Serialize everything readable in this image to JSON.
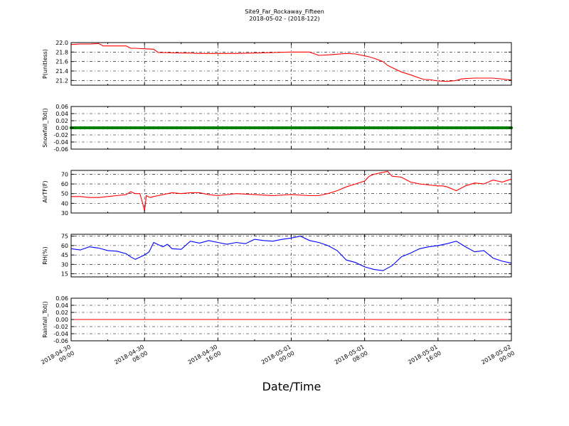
{
  "figure": {
    "title_line1": "Site9_Far_Rockaway_Fifteen",
    "title_line2": "2018-05-02 - (2018-122)",
    "xlabel": "Date/Time",
    "x_ticks": [
      {
        "l1": "2018-04-30",
        "l2": "00:00"
      },
      {
        "l1": "2018-04-30",
        "l2": "08:00"
      },
      {
        "l1": "2018-04-30",
        "l2": "16:00"
      },
      {
        "l1": "2018-05-01",
        "l2": "00:00"
      },
      {
        "l1": "2018-05-01",
        "l2": "08:00"
      },
      {
        "l1": "2018-05-01",
        "l2": "16:00"
      },
      {
        "l1": "2018-05-02",
        "l2": "00:00"
      }
    ]
  },
  "chart_data": [
    {
      "type": "line",
      "ylabel": "P(unitless)",
      "ylim": [
        21.1,
        22.0
      ],
      "yticks": [
        21.2,
        21.4,
        21.6,
        21.8,
        22.0
      ],
      "tick_decimals": 1,
      "color": "#ff0000",
      "grid": true,
      "x": [
        0,
        1,
        2,
        3,
        3.5,
        4,
        5,
        6,
        6.5,
        7,
        8,
        9,
        9.5,
        10,
        12,
        13,
        14,
        15,
        16,
        18,
        20,
        22,
        24,
        26,
        27,
        28,
        30,
        31,
        32,
        32.5,
        33,
        34,
        34.5,
        35,
        36,
        37,
        38,
        38.5,
        39,
        40,
        41,
        42,
        42.5,
        43,
        44,
        46,
        48
      ],
      "y": [
        21.96,
        21.97,
        21.97,
        21.98,
        21.93,
        21.93,
        21.93,
        21.93,
        21.88,
        21.88,
        21.87,
        21.86,
        21.79,
        21.79,
        21.78,
        21.78,
        21.77,
        21.77,
        21.77,
        21.77,
        21.78,
        21.79,
        21.8,
        21.8,
        21.73,
        21.74,
        21.77,
        21.76,
        21.72,
        21.7,
        21.67,
        21.6,
        21.52,
        21.47,
        21.38,
        21.32,
        21.25,
        21.22,
        21.22,
        21.19,
        21.18,
        21.2,
        21.23,
        21.24,
        21.25,
        21.25,
        21.21
      ]
    },
    {
      "type": "line",
      "ylabel": "Snowfall_Tot()",
      "ylim": [
        -0.06,
        0.06
      ],
      "yticks": [
        -0.06,
        -0.04,
        -0.02,
        0.0,
        0.02,
        0.04,
        0.06
      ],
      "tick_decimals": 2,
      "color": "#008000",
      "grid": true,
      "x": [
        0,
        48
      ],
      "y": [
        0.0,
        0.0
      ]
    },
    {
      "type": "line",
      "ylabel": "AirTF(F)",
      "ylim": [
        30,
        74
      ],
      "yticks": [
        30,
        40,
        50,
        60,
        70
      ],
      "tick_decimals": 0,
      "color": "#ff0000",
      "grid": true,
      "x": [
        0,
        1,
        2,
        3,
        4,
        5,
        6,
        6.5,
        7,
        7.5,
        7.8,
        8.0,
        8.2,
        8.6,
        9,
        9.5,
        10,
        11,
        12,
        13,
        14,
        15,
        16,
        18,
        20,
        22,
        24,
        26,
        27,
        28,
        29,
        30,
        31,
        32,
        32.5,
        33,
        34,
        34.5,
        35,
        36,
        37,
        38,
        39,
        40,
        40.5,
        41,
        42,
        43,
        44,
        45,
        46,
        47,
        48
      ],
      "y": [
        47,
        47,
        46,
        46,
        47,
        48,
        49,
        52,
        50,
        50,
        40,
        32,
        48,
        46,
        47,
        48,
        49,
        51,
        50,
        51,
        51,
        49,
        48,
        50,
        49,
        48,
        49,
        48,
        48,
        50,
        53,
        57,
        60,
        63,
        68,
        70,
        72,
        73,
        68,
        67,
        62,
        60,
        59,
        58,
        58,
        57,
        53,
        58,
        61,
        60,
        64,
        62,
        65
      ]
    },
    {
      "type": "line",
      "ylabel": "RH(%)",
      "ylim": [
        10,
        78
      ],
      "yticks": [
        15,
        30,
        45,
        60,
        75
      ],
      "tick_decimals": 0,
      "color": "#0000ff",
      "grid": true,
      "x": [
        0,
        1,
        2,
        3,
        4,
        5,
        6,
        6.5,
        7,
        8,
        8.5,
        9,
        10,
        10.5,
        11,
        12,
        13,
        14,
        15,
        16,
        17,
        18,
        19,
        20,
        21,
        22,
        23,
        24,
        25,
        26,
        27,
        28,
        29,
        30,
        31,
        32,
        33,
        34,
        35,
        36,
        37,
        38,
        39,
        40,
        41,
        42,
        43,
        44,
        45,
        46,
        47,
        48
      ],
      "y": [
        55,
        53,
        58,
        56,
        52,
        51,
        47,
        42,
        38,
        45,
        50,
        65,
        58,
        62,
        55,
        54,
        67,
        64,
        68,
        65,
        62,
        65,
        63,
        70,
        68,
        67,
        70,
        72,
        75,
        68,
        65,
        60,
        52,
        37,
        33,
        26,
        22,
        20,
        28,
        42,
        48,
        55,
        58,
        60,
        63,
        67,
        58,
        50,
        52,
        40,
        35,
        32
      ]
    },
    {
      "type": "line",
      "ylabel": "Rainfall_Tot()",
      "ylim": [
        -0.06,
        0.06
      ],
      "yticks": [
        -0.06,
        -0.04,
        -0.02,
        0.0,
        0.02,
        0.04,
        0.06
      ],
      "tick_decimals": 2,
      "color": "#ff0000",
      "grid": true,
      "x": [
        0,
        48
      ],
      "y": [
        0.0,
        0.0
      ]
    }
  ]
}
